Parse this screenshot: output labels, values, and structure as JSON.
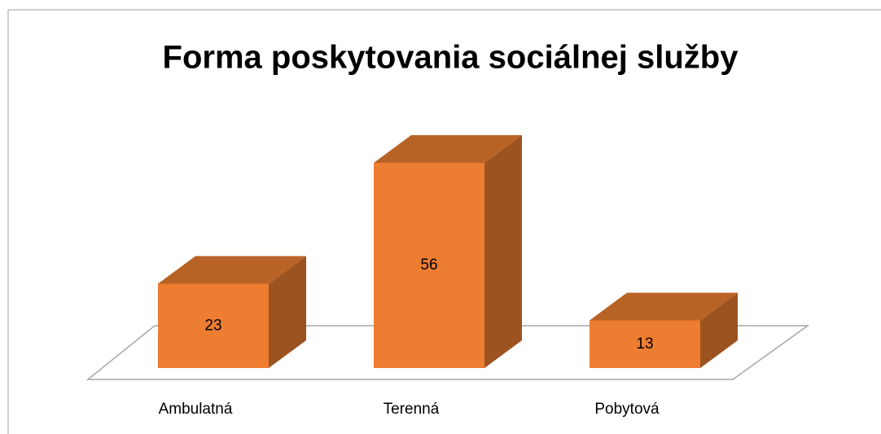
{
  "chart_data": {
    "type": "bar3d",
    "title": "Forma poskytovania sociálnej služby",
    "categories": [
      "Ambulatná",
      "Terenná",
      "Pobytová"
    ],
    "values": [
      23,
      56,
      13
    ],
    "color": "#ed7d31"
  }
}
